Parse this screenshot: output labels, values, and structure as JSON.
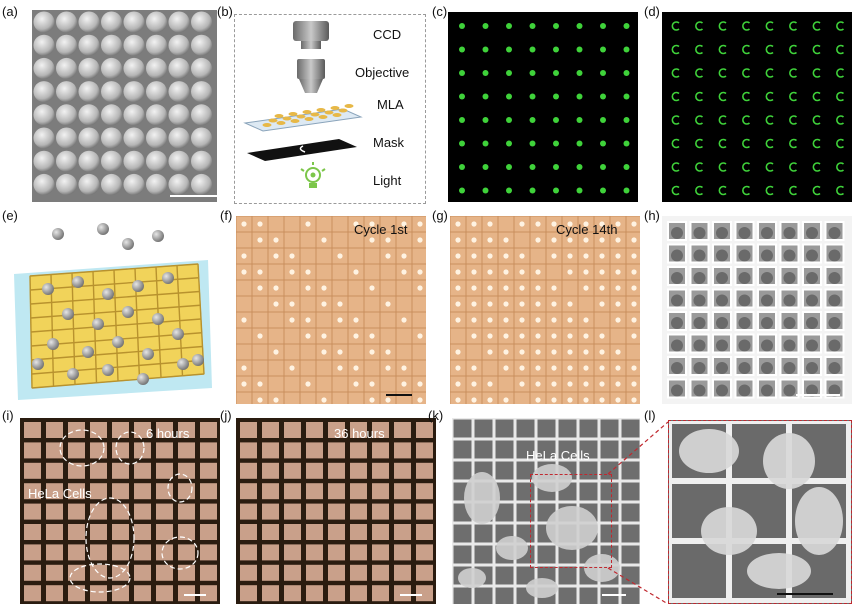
{
  "labels": {
    "a": "(a)",
    "b": "(b)",
    "c": "(c)",
    "d": "(d)",
    "e": "(e)",
    "f": "(f)",
    "g": "(g)",
    "h": "(h)",
    "i": "(i)",
    "j": "(j)",
    "k": "(k)",
    "l": "(l)"
  },
  "schematic_b": {
    "ccd": "CCD",
    "objective": "Objective",
    "mla": "MLA",
    "mask": "Mask",
    "light": "Light"
  },
  "panel_f": {
    "caption": "Cycle 1st"
  },
  "panel_g": {
    "caption": "Cycle 14th"
  },
  "panel_i": {
    "time": "6 hours",
    "cells": "HeLa Cells"
  },
  "panel_j": {
    "time": "36 hours"
  },
  "panel_k": {
    "cells": "HeLa Cells"
  },
  "colors": {
    "green_spot": "#3fd23a",
    "grid_tan": "#e2b07e",
    "scaffold_yellow": "#f1d35a",
    "substrate_cyan": "#bfe8f2",
    "zoom_box": "#c0282f"
  },
  "icons": [
    "bulb-icon"
  ]
}
